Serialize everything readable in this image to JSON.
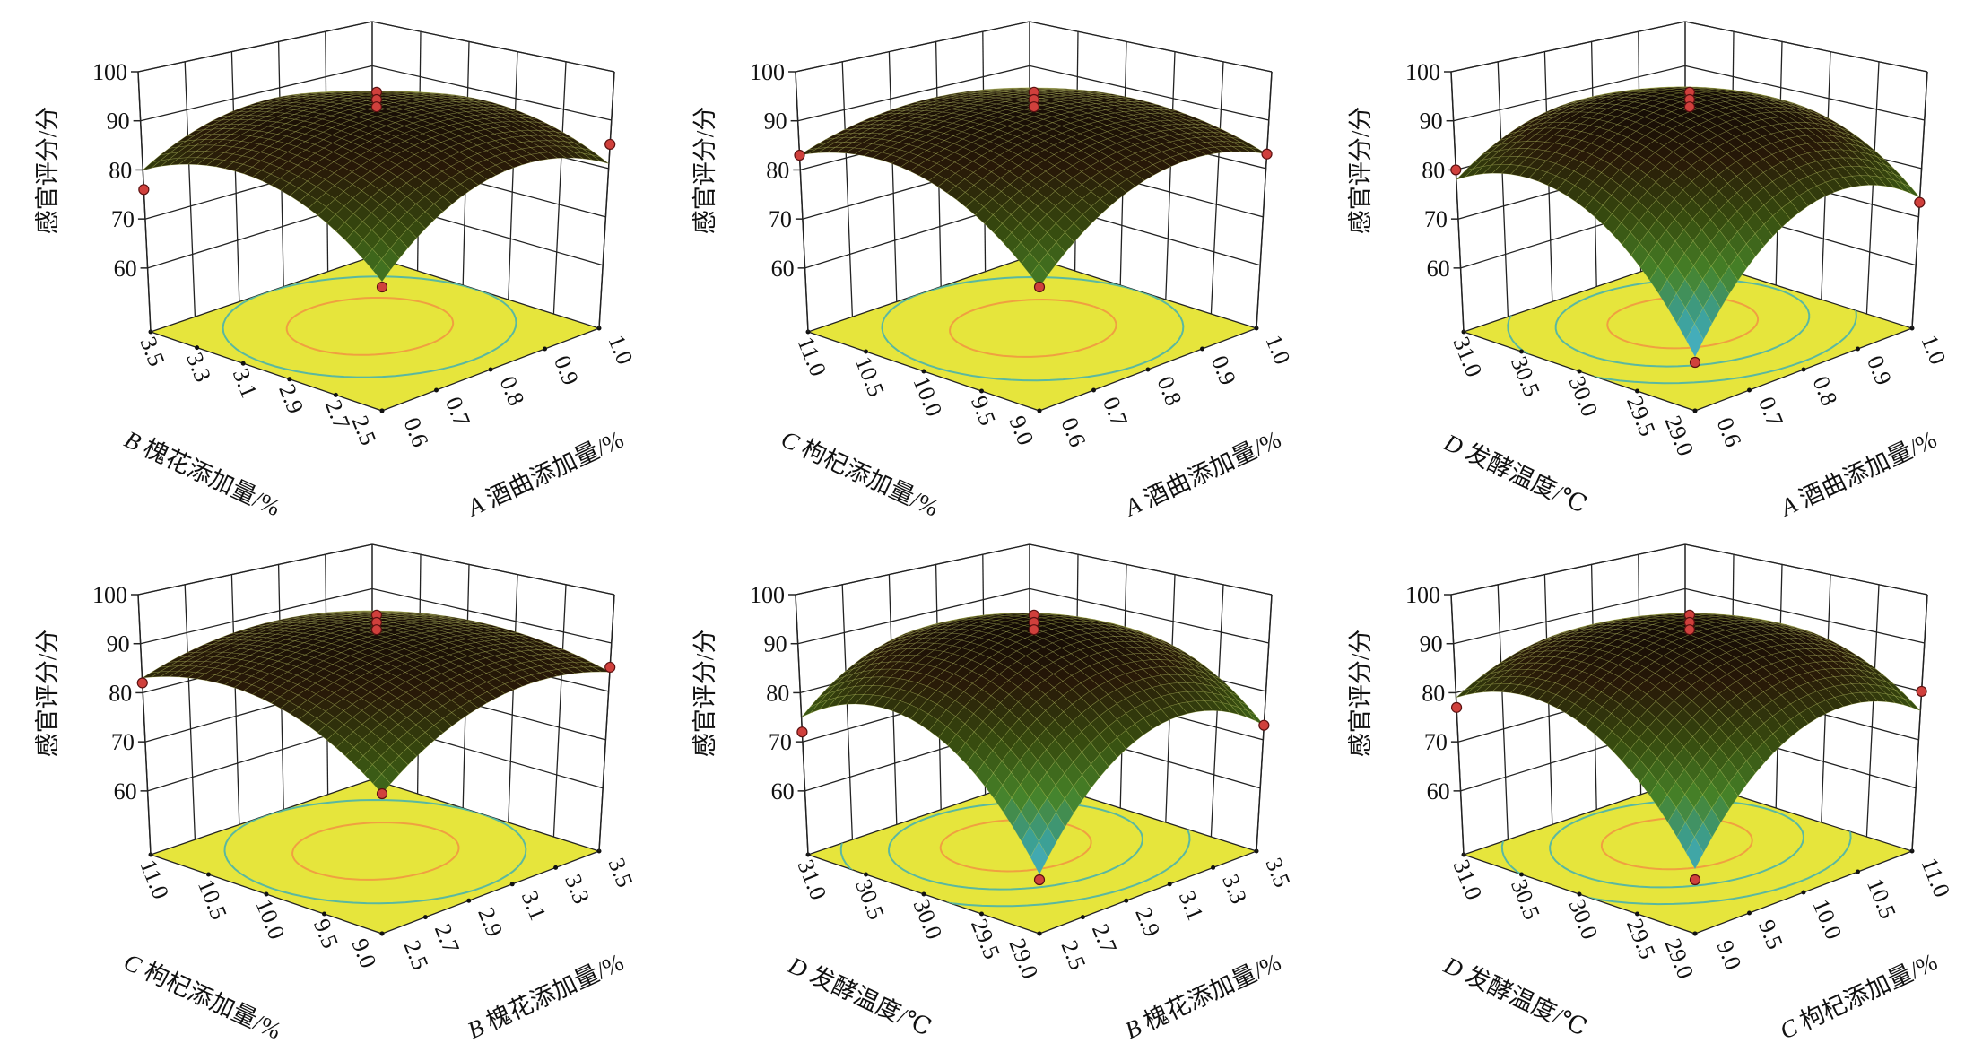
{
  "chart_data": [
    {
      "type": "surface",
      "zlabel": "感官评分/分",
      "x_axis": {
        "letter": "A",
        "name": "酒曲添加量/%",
        "ticks": [
          "0.6",
          "0.7",
          "0.8",
          "0.9",
          "1.0"
        ]
      },
      "y_axis": {
        "letter": "B",
        "name": "槐花添加量/%",
        "ticks": [
          "2.5",
          "2.7",
          "2.9",
          "3.1",
          "3.3",
          "3.5"
        ]
      },
      "z_ticks": [
        "60",
        "70",
        "80",
        "90",
        "100"
      ],
      "z_grid": [
        [
          71,
          84,
          80
        ],
        [
          85,
          91,
          88
        ],
        [
          81,
          88,
          83
        ]
      ],
      "points": [
        {
          "x": "mid",
          "y": "mid",
          "z": 96
        },
        {
          "x": "mid",
          "y": "mid",
          "z": 94.5
        },
        {
          "x": "mid",
          "y": "mid",
          "z": 93
        },
        {
          "x": "min",
          "y": "max",
          "z": 76
        },
        {
          "x": "max",
          "y": "min",
          "z": 85
        },
        {
          "x": "min",
          "y": "min",
          "z": 70
        }
      ]
    },
    {
      "type": "surface",
      "zlabel": "感官评分/分",
      "x_axis": {
        "letter": "A",
        "name": "酒曲添加量/%",
        "ticks": [
          "0.6",
          "0.7",
          "0.8",
          "0.9",
          "1.0"
        ]
      },
      "y_axis": {
        "letter": "C",
        "name": "枸杞添加量/%",
        "ticks": [
          "9.0",
          "9.5",
          "10.0",
          "10.5",
          "11.0"
        ]
      },
      "z_ticks": [
        "60",
        "70",
        "80",
        "90",
        "100"
      ],
      "z_grid": [
        [
          70,
          85,
          83
        ],
        [
          85,
          91,
          88
        ],
        [
          83,
          88,
          85
        ]
      ],
      "points": [
        {
          "x": "mid",
          "y": "mid",
          "z": 96
        },
        {
          "x": "mid",
          "y": "mid",
          "z": 94.5
        },
        {
          "x": "mid",
          "y": "mid",
          "z": 93
        },
        {
          "x": "min",
          "y": "max",
          "z": 83
        },
        {
          "x": "max",
          "y": "min",
          "z": 83
        },
        {
          "x": "min",
          "y": "min",
          "z": 70
        }
      ]
    },
    {
      "type": "surface",
      "zlabel": "感官评分/分",
      "x_axis": {
        "letter": "A",
        "name": "酒曲添加量/%",
        "ticks": [
          "0.6",
          "0.7",
          "0.8",
          "0.9",
          "1.0"
        ]
      },
      "y_axis": {
        "letter": "D",
        "name": "发酵温度/℃",
        "ticks": [
          "29.0",
          "29.5",
          "30.0",
          "30.5",
          "31.0"
        ]
      },
      "z_ticks": [
        "60",
        "70",
        "80",
        "90",
        "100"
      ],
      "z_grid": [
        [
          57,
          80,
          78
        ],
        [
          79,
          92,
          88
        ],
        [
          74,
          87,
          82
        ]
      ],
      "points": [
        {
          "x": "mid",
          "y": "mid",
          "z": 96
        },
        {
          "x": "mid",
          "y": "mid",
          "z": 94.5
        },
        {
          "x": "mid",
          "y": "mid",
          "z": 93
        },
        {
          "x": "min",
          "y": "max",
          "z": 80
        },
        {
          "x": "max",
          "y": "min",
          "z": 73
        },
        {
          "x": "min",
          "y": "min",
          "z": 56
        }
      ]
    },
    {
      "type": "surface",
      "zlabel": "感官评分/分",
      "x_axis": {
        "letter": "B",
        "name": "槐花添加量/%",
        "ticks": [
          "2.5",
          "2.7",
          "2.9",
          "3.1",
          "3.3",
          "3.5"
        ]
      },
      "y_axis": {
        "letter": "C",
        "name": "枸杞添加量/%",
        "ticks": [
          "9.0",
          "9.5",
          "10.0",
          "10.5",
          "11.0"
        ]
      },
      "z_ticks": [
        "60",
        "70",
        "80",
        "90",
        "100"
      ],
      "z_grid": [
        [
          73,
          85,
          83
        ],
        [
          85,
          91,
          88
        ],
        [
          84,
          88,
          85
        ]
      ],
      "points": [
        {
          "x": "mid",
          "y": "mid",
          "z": 96
        },
        {
          "x": "mid",
          "y": "mid",
          "z": 94.5
        },
        {
          "x": "mid",
          "y": "mid",
          "z": 93
        },
        {
          "x": "min",
          "y": "max",
          "z": 82
        },
        {
          "x": "max",
          "y": "min",
          "z": 85
        },
        {
          "x": "min",
          "y": "min",
          "z": 73
        }
      ]
    },
    {
      "type": "surface",
      "zlabel": "感官评分/分",
      "x_axis": {
        "letter": "B",
        "name": "槐花添加量/%",
        "ticks": [
          "2.5",
          "2.7",
          "2.9",
          "3.1",
          "3.3",
          "3.5"
        ]
      },
      "y_axis": {
        "letter": "D",
        "name": "发酵温度/℃",
        "ticks": [
          "29.0",
          "29.5",
          "30.0",
          "30.5",
          "31.0"
        ]
      },
      "z_ticks": [
        "60",
        "70",
        "80",
        "90",
        "100"
      ],
      "z_grid": [
        [
          58,
          80,
          75
        ],
        [
          79,
          92,
          87
        ],
        [
          73,
          86,
          80
        ]
      ],
      "points": [
        {
          "x": "mid",
          "y": "mid",
          "z": 96
        },
        {
          "x": "mid",
          "y": "mid",
          "z": 94.5
        },
        {
          "x": "mid",
          "y": "mid",
          "z": 93
        },
        {
          "x": "min",
          "y": "max",
          "z": 72
        },
        {
          "x": "max",
          "y": "min",
          "z": 73
        },
        {
          "x": "min",
          "y": "min",
          "z": 57
        }
      ]
    },
    {
      "type": "surface",
      "zlabel": "感官评分/分",
      "x_axis": {
        "letter": "C",
        "name": "枸杞添加量/%",
        "ticks": [
          "9.0",
          "9.5",
          "10.0",
          "10.5",
          "11.0"
        ]
      },
      "y_axis": {
        "letter": "D",
        "name": "发酵温度/℃",
        "ticks": [
          "29.0",
          "29.5",
          "30.0",
          "30.5",
          "31.0"
        ]
      },
      "z_ticks": [
        "60",
        "70",
        "80",
        "90",
        "100"
      ],
      "z_grid": [
        [
          59,
          81,
          79
        ],
        [
          80,
          92,
          87
        ],
        [
          76,
          87,
          81
        ]
      ],
      "points": [
        {
          "x": "mid",
          "y": "mid",
          "z": 96
        },
        {
          "x": "mid",
          "y": "mid",
          "z": 94.5
        },
        {
          "x": "mid",
          "y": "mid",
          "z": 93
        },
        {
          "x": "min",
          "y": "max",
          "z": 77
        },
        {
          "x": "max",
          "y": "min",
          "z": 80
        },
        {
          "x": "min",
          "y": "min",
          "z": 57
        }
      ]
    }
  ],
  "colors": {
    "floor": "#e6e53c",
    "contour_inner": "#f0a040",
    "contour_outer": "#5ab8a0",
    "point": "#d0403c",
    "surface_low": "#4ab8e8",
    "surface_high": "#0c0604"
  }
}
